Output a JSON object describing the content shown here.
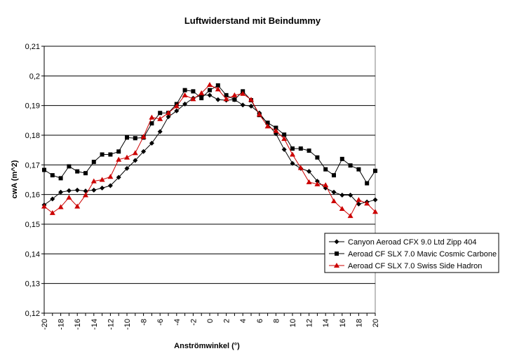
{
  "chart_data": {
    "type": "line",
    "title": "Luftwiderstand mit Beindummy",
    "xlabel": "Anströmwinkel (°)",
    "ylabel": "cwA (m^2)",
    "xlim": [
      -20,
      20
    ],
    "ylim": [
      0.12,
      0.21
    ],
    "x_ticks": [
      "-20",
      "-18",
      "-16",
      "-14",
      "-12",
      "-10",
      "-8",
      "-6",
      "-4",
      "-2",
      "0",
      "2",
      "4",
      "6",
      "8",
      "10",
      "12",
      "14",
      "16",
      "18",
      "20"
    ],
    "y_ticks": [
      "0,12",
      "0,13",
      "0,14",
      "0,15",
      "0,16",
      "0,17",
      "0,18",
      "0,19",
      "0,2",
      "0,21"
    ],
    "grid": "horizontal",
    "legend_position": "right",
    "series": [
      {
        "name": "Canyon Aeroad CFX 9.0 Ltd Zipp 404",
        "color": "#000000",
        "marker": "diamond",
        "x": [
          -20,
          -19,
          -18,
          -17,
          -16,
          -15,
          -14,
          -13,
          -12,
          -11,
          -10,
          -9,
          -8,
          -7,
          -6,
          -5,
          -4,
          -3,
          -2,
          -1,
          0,
          1,
          2,
          3,
          4,
          5,
          6,
          7,
          8,
          9,
          10,
          11,
          12,
          13,
          14,
          15,
          16,
          17,
          18,
          19,
          20
        ],
        "y": [
          0.1565,
          0.1585,
          0.1608,
          0.1613,
          0.1615,
          0.1612,
          0.1615,
          0.1622,
          0.163,
          0.1658,
          0.1688,
          0.1715,
          0.1745,
          0.1773,
          0.1812,
          0.1862,
          0.1882,
          0.1905,
          0.1925,
          0.1935,
          0.1935,
          0.192,
          0.1918,
          0.192,
          0.1902,
          0.1898,
          0.1875,
          0.1838,
          0.1805,
          0.1752,
          0.1705,
          0.1688,
          0.1678,
          0.1645,
          0.1622,
          0.1608,
          0.1598,
          0.1598,
          0.1568,
          0.1575,
          0.1582
        ]
      },
      {
        "name": "Aeroad CF SLX 7.0 Mavic Cosmic Carbone",
        "color": "#000000",
        "marker": "square",
        "x": [
          -20,
          -19,
          -18,
          -17,
          -16,
          -15,
          -14,
          -13,
          -12,
          -11,
          -10,
          -9,
          -8,
          -7,
          -6,
          -5,
          -4,
          -3,
          -2,
          -1,
          0,
          1,
          2,
          3,
          4,
          5,
          6,
          7,
          8,
          9,
          10,
          11,
          12,
          13,
          14,
          15,
          16,
          17,
          18,
          19,
          20
        ],
        "y": [
          0.1683,
          0.1665,
          0.1655,
          0.1695,
          0.1678,
          0.1672,
          0.171,
          0.1735,
          0.1735,
          0.1745,
          0.1792,
          0.179,
          0.1792,
          0.184,
          0.1875,
          0.1875,
          0.1905,
          0.1952,
          0.1948,
          0.1925,
          0.1952,
          0.1968,
          0.1935,
          0.192,
          0.1948,
          0.1918,
          0.1868,
          0.1842,
          0.1825,
          0.1802,
          0.1755,
          0.1755,
          0.1748,
          0.1725,
          0.1685,
          0.1665,
          0.172,
          0.1698,
          0.1685,
          0.1638,
          0.168
        ]
      },
      {
        "name": "Aeroad CF SLX 7.0 Swiss Side Hadron",
        "color": "#cc0000",
        "marker": "triangle",
        "x": [
          -20,
          -19,
          -18,
          -17,
          -16,
          -15,
          -14,
          -13,
          -12,
          -11,
          -10,
          -9,
          -8,
          -7,
          -6,
          -5,
          -4,
          -3,
          -2,
          -1,
          0,
          1,
          2,
          3,
          4,
          5,
          6,
          7,
          8,
          9,
          10,
          11,
          12,
          13,
          14,
          15,
          16,
          17,
          18,
          19,
          20
        ],
        "y": [
          0.156,
          0.1538,
          0.1558,
          0.159,
          0.156,
          0.1598,
          0.1645,
          0.165,
          0.166,
          0.1718,
          0.1725,
          0.174,
          0.1795,
          0.186,
          0.1855,
          0.1875,
          0.1898,
          0.1935,
          0.1922,
          0.1942,
          0.197,
          0.1955,
          0.1922,
          0.1935,
          0.194,
          0.192,
          0.187,
          0.183,
          0.1815,
          0.1788,
          0.1735,
          0.169,
          0.1642,
          0.1635,
          0.1632,
          0.1578,
          0.1552,
          0.1528,
          0.1582,
          0.157,
          0.1542
        ]
      }
    ]
  }
}
